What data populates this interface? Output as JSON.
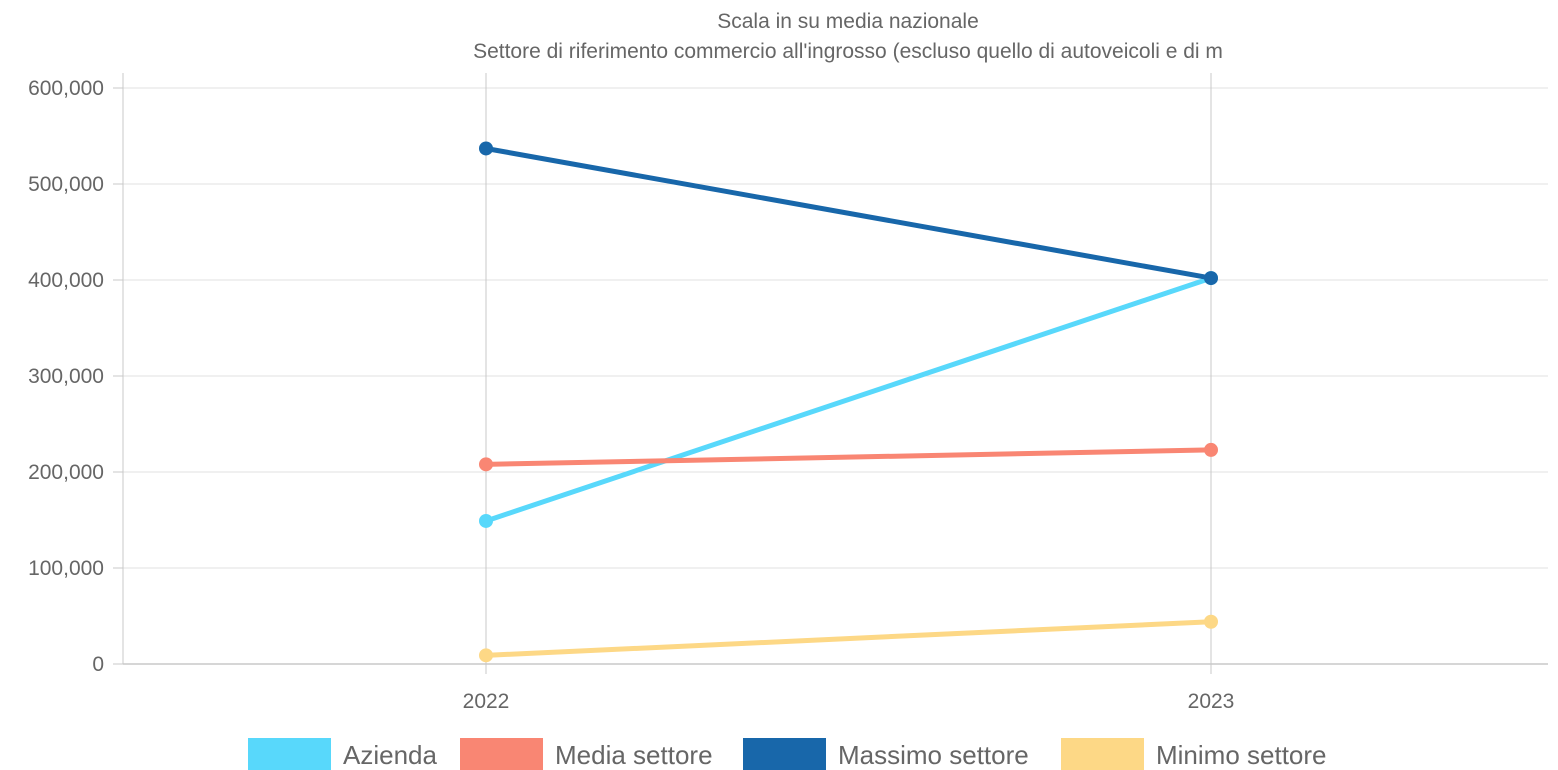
{
  "chart_data": {
    "type": "line",
    "title": "Scala in su media nazionale",
    "subtitle": "Settore di riferimento commercio all'ingrosso (escluso quello di autoveicoli e di m",
    "x": [
      "2022",
      "2023"
    ],
    "ylim": [
      0,
      600000
    ],
    "yticks": [
      0,
      100000,
      200000,
      300000,
      400000,
      500000,
      600000
    ],
    "ytick_labels": [
      "0",
      "100,000",
      "200,000",
      "300,000",
      "400,000",
      "500,000",
      "600,000"
    ],
    "grid": true,
    "legend_position": "bottom",
    "series": [
      {
        "name": "Azienda",
        "color": "#58d8fb",
        "values": [
          149000,
          402000
        ]
      },
      {
        "name": "Media settore",
        "color": "#f98673",
        "values": [
          208000,
          223000
        ]
      },
      {
        "name": "Massimo settore",
        "color": "#1867aa",
        "values": [
          537000,
          402000
        ]
      },
      {
        "name": "Minimo settore",
        "color": "#fdd886",
        "values": [
          9000,
          44000
        ]
      }
    ]
  }
}
